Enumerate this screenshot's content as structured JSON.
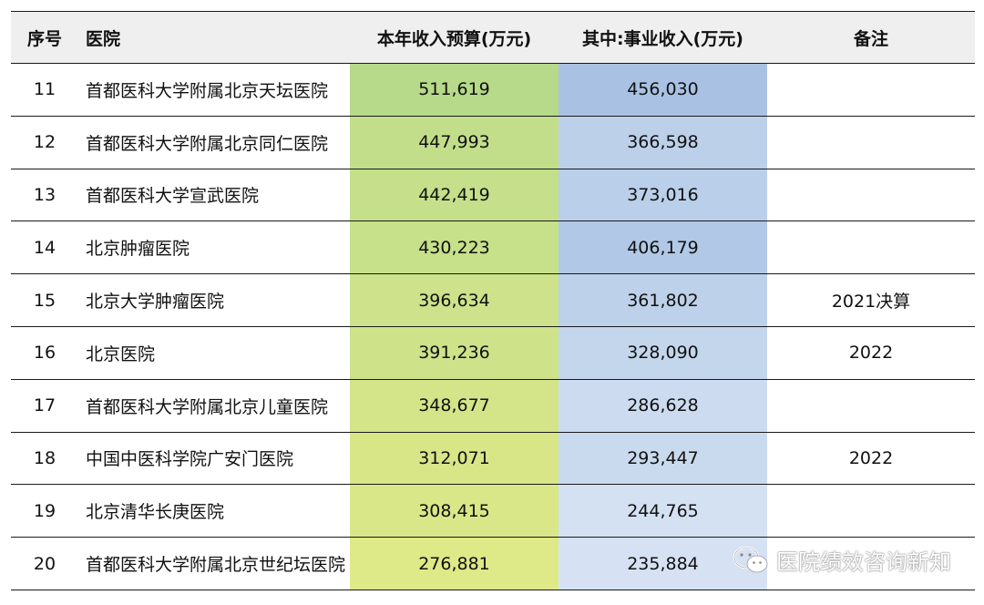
{
  "header": {
    "index": "序号",
    "hospital": "医院",
    "budget": "本年收入预算(万元)",
    "business": "其中:事业收入(万元)",
    "note": "备注"
  },
  "rows": [
    {
      "index": "11",
      "hospital": "首都医科大学附属北京天坛医院",
      "budget": "511,619",
      "business": "456,030",
      "note": "",
      "budget_color": "#b6d98a",
      "business_color": "#a9c2e3"
    },
    {
      "index": "12",
      "hospital": "首都医科大学附属北京同仁医院",
      "budget": "447,993",
      "business": "366,598",
      "note": "",
      "budget_color": "#c3de8b",
      "business_color": "#bcd0ea"
    },
    {
      "index": "13",
      "hospital": "首都医科大学宣武医院",
      "budget": "442,419",
      "business": "373,016",
      "note": "",
      "budget_color": "#c5df8b",
      "business_color": "#bacfe9"
    },
    {
      "index": "14",
      "hospital": "北京肿瘤医院",
      "budget": "430,223",
      "business": "406,179",
      "note": "",
      "budget_color": "#c7e08a",
      "business_color": "#b1c8e6"
    },
    {
      "index": "15",
      "hospital": "北京大学肿瘤医院",
      "budget": "396,634",
      "business": "361,802",
      "note": "2021决算",
      "budget_color": "#cde28a",
      "business_color": "#bdd1ea"
    },
    {
      "index": "16",
      "hospital": "北京医院",
      "budget": "391,236",
      "business": "328,090",
      "note": "2022",
      "budget_color": "#cee28a",
      "business_color": "#c4d6ec"
    },
    {
      "index": "17",
      "hospital": "首都医科大学附属北京儿童医院",
      "budget": "348,677",
      "business": "286,628",
      "note": "",
      "budget_color": "#d3e489",
      "business_color": "#ccdbef"
    },
    {
      "index": "18",
      "hospital": "中国中医科学院广安门医院",
      "budget": "312,071",
      "business": "293,447",
      "note": "2022",
      "budget_color": "#d8e688",
      "business_color": "#cadaee"
    },
    {
      "index": "19",
      "hospital": "北京清华长庚医院",
      "budget": "308,415",
      "business": "244,765",
      "note": "",
      "budget_color": "#d9e788",
      "business_color": "#d4e1f2"
    },
    {
      "index": "20",
      "hospital": "首都医科大学附属北京世纪坛医院",
      "budget": "276,881",
      "business": "235,884",
      "note": "",
      "budget_color": "#dee987",
      "business_color": "#d6e2f3"
    }
  ],
  "watermark": {
    "text": "医院绩效咨询新知",
    "icon": "wechat-icon"
  }
}
